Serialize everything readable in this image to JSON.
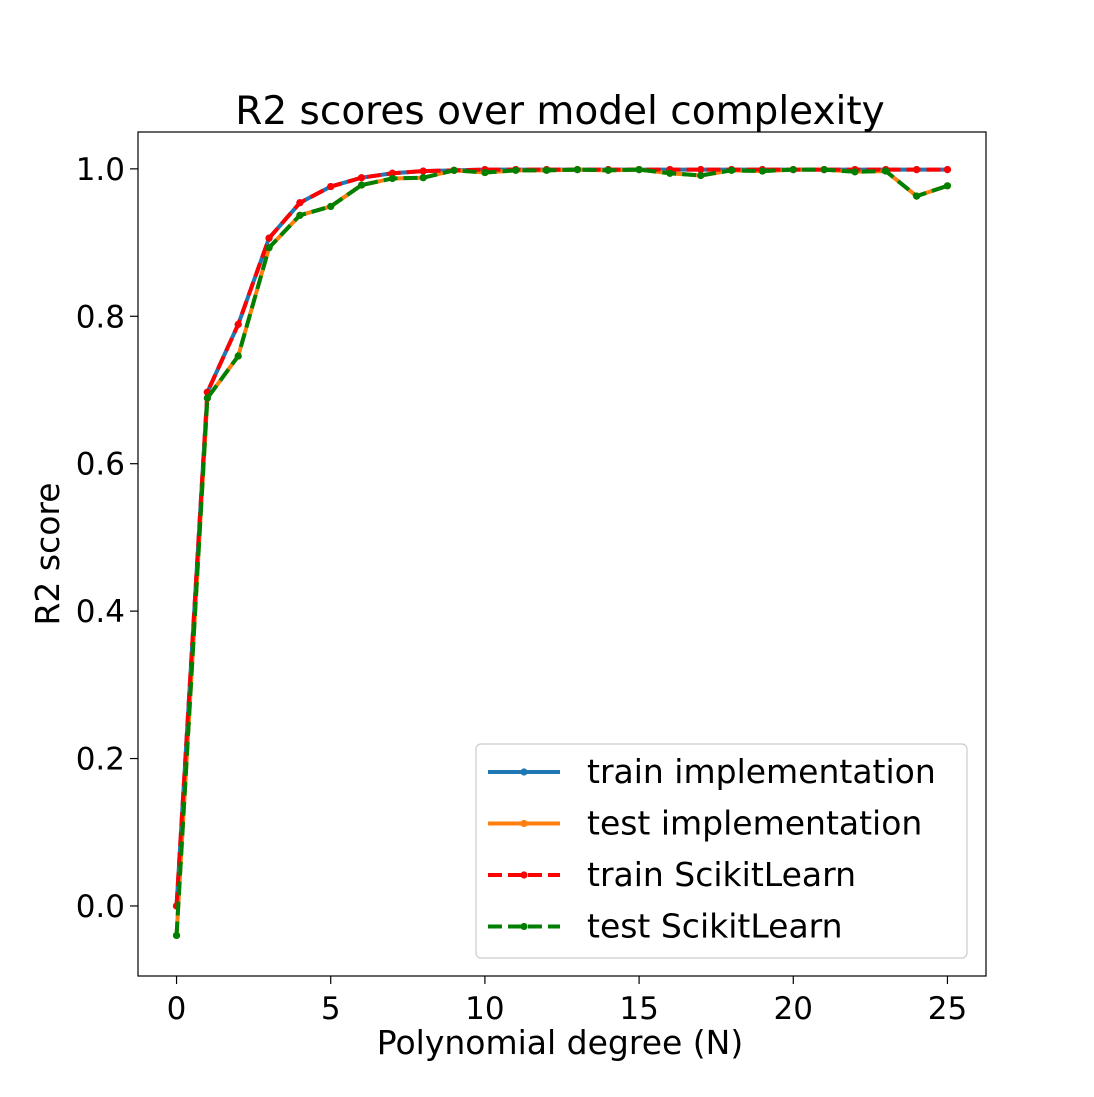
{
  "chart_data": {
    "type": "line",
    "title": "R2 scores over model complexity",
    "xlabel": "Polynomial degree (N)",
    "ylabel": "R2 score",
    "xlim": [
      -1.25,
      26.25
    ],
    "ylim": [
      -0.095,
      1.05
    ],
    "xticks": [
      0,
      5,
      10,
      15,
      20,
      25
    ],
    "xtick_labels": [
      "0",
      "5",
      "10",
      "15",
      "20",
      "25"
    ],
    "yticks": [
      0.0,
      0.2,
      0.4,
      0.6,
      0.8,
      1.0
    ],
    "ytick_labels": [
      "0.0",
      "0.2",
      "0.4",
      "0.6",
      "0.8",
      "1.0"
    ],
    "grid": false,
    "legend_position": "lower-right",
    "x": [
      0,
      1,
      2,
      3,
      4,
      5,
      6,
      7,
      8,
      9,
      10,
      11,
      12,
      13,
      14,
      15,
      16,
      17,
      18,
      19,
      20,
      21,
      22,
      23,
      24,
      25
    ],
    "series": [
      {
        "name": "train implementation",
        "color": "#1f77b4",
        "style": "solid",
        "values": [
          0.0,
          0.697,
          0.789,
          0.906,
          0.954,
          0.976,
          0.988,
          0.994,
          0.997,
          0.998,
          0.999,
          0.999,
          0.999,
          0.999,
          0.999,
          0.999,
          0.999,
          0.999,
          0.999,
          0.999,
          0.999,
          0.999,
          0.999,
          0.999,
          0.999,
          0.999
        ]
      },
      {
        "name": "test implementation",
        "color": "#ff7f0e",
        "style": "solid",
        "values": [
          -0.04,
          0.689,
          0.746,
          0.893,
          0.937,
          0.949,
          0.978,
          0.987,
          0.988,
          0.998,
          0.995,
          0.998,
          0.998,
          0.999,
          0.998,
          0.999,
          0.994,
          0.991,
          0.998,
          0.997,
          0.999,
          0.999,
          0.996,
          0.997,
          0.963,
          0.977
        ]
      },
      {
        "name": "train ScikitLearn",
        "color": "#ff0000",
        "style": "dashed",
        "values": [
          0.0,
          0.697,
          0.789,
          0.906,
          0.954,
          0.976,
          0.988,
          0.994,
          0.997,
          0.998,
          0.999,
          0.999,
          0.999,
          0.999,
          0.999,
          0.999,
          0.999,
          0.999,
          0.999,
          0.999,
          0.999,
          0.999,
          0.999,
          0.999,
          0.999,
          0.999
        ]
      },
      {
        "name": "test ScikitLearn",
        "color": "#008000",
        "style": "dashed",
        "values": [
          -0.04,
          0.689,
          0.746,
          0.893,
          0.937,
          0.949,
          0.978,
          0.987,
          0.988,
          0.998,
          0.995,
          0.998,
          0.998,
          0.999,
          0.998,
          0.999,
          0.994,
          0.991,
          0.998,
          0.997,
          0.999,
          0.999,
          0.996,
          0.997,
          0.963,
          0.977
        ]
      }
    ]
  }
}
